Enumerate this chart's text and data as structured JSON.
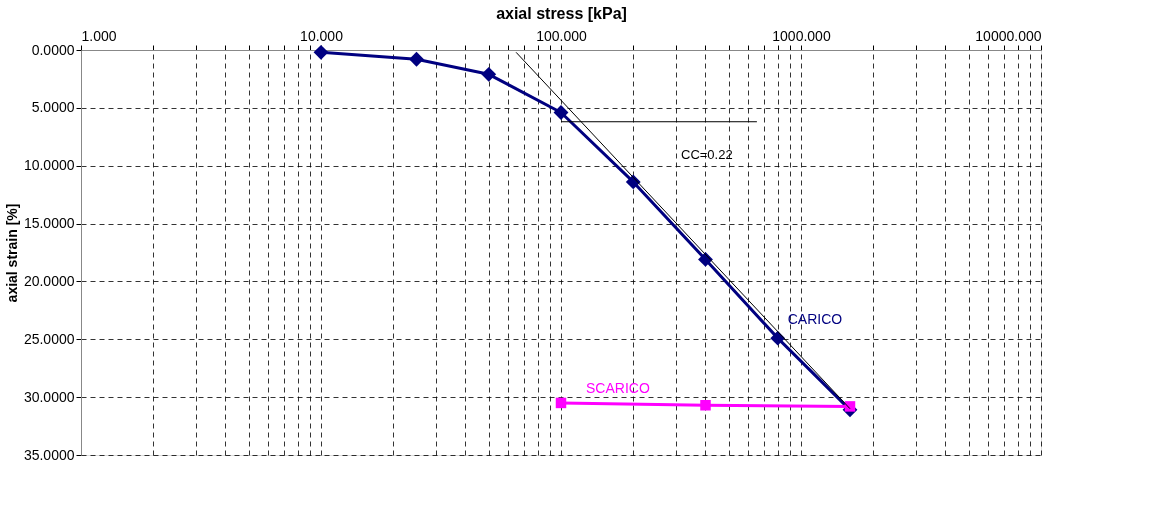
{
  "chart_data": {
    "type": "line",
    "xlabel": "axial stress [kPa]",
    "ylabel": "axial strain [%]",
    "log": "x",
    "grid": true,
    "line_style": "solid",
    "xlim": [
      1,
      10000
    ],
    "ylim": [
      35,
      0
    ],
    "xticks": [
      {
        "value": 1,
        "label": "1.000"
      },
      {
        "value": 2,
        "label": null
      },
      {
        "value": 3,
        "label": null
      },
      {
        "value": 4,
        "label": null
      },
      {
        "value": 5,
        "label": null
      },
      {
        "value": 6,
        "label": null
      },
      {
        "value": 7,
        "label": null
      },
      {
        "value": 8,
        "label": null
      },
      {
        "value": 9,
        "label": null
      },
      {
        "value": 10,
        "label": "10.000"
      },
      {
        "value": 20,
        "label": null
      },
      {
        "value": 30,
        "label": null
      },
      {
        "value": 40,
        "label": null
      },
      {
        "value": 50,
        "label": null
      },
      {
        "value": 60,
        "label": null
      },
      {
        "value": 70,
        "label": null
      },
      {
        "value": 80,
        "label": null
      },
      {
        "value": 90,
        "label": null
      },
      {
        "value": 100,
        "label": "100.000"
      },
      {
        "value": 200,
        "label": null
      },
      {
        "value": 300,
        "label": null
      },
      {
        "value": 400,
        "label": null
      },
      {
        "value": 500,
        "label": null
      },
      {
        "value": 600,
        "label": null
      },
      {
        "value": 700,
        "label": null
      },
      {
        "value": 800,
        "label": null
      },
      {
        "value": 900,
        "label": null
      },
      {
        "value": 1000,
        "label": "1000.000"
      },
      {
        "value": 2000,
        "label": null
      },
      {
        "value": 3000,
        "label": null
      },
      {
        "value": 4000,
        "label": null
      },
      {
        "value": 5000,
        "label": null
      },
      {
        "value": 6000,
        "label": null
      },
      {
        "value": 7000,
        "label": null
      },
      {
        "value": 8000,
        "label": null
      },
      {
        "value": 9000,
        "label": null
      },
      {
        "value": 10000,
        "label": "10000.000"
      }
    ],
    "yticks": [
      {
        "value": 0,
        "label": "0.0000"
      },
      {
        "value": 5,
        "label": "5.0000"
      },
      {
        "value": 10,
        "label": "10.0000"
      },
      {
        "value": 15,
        "label": "15.0000"
      },
      {
        "value": 20,
        "label": "20.0000"
      },
      {
        "value": 25,
        "label": "25.0000"
      },
      {
        "value": 30,
        "label": "30.0000"
      },
      {
        "value": 35,
        "label": "35.0000"
      }
    ],
    "series": [
      {
        "name": "CARICO",
        "color": "#000080",
        "marker": "diamond",
        "x": [
          10,
          25,
          50,
          100,
          200,
          400,
          800,
          1600
        ],
        "values": [
          0.2,
          0.8,
          2.1,
          5.4,
          11.4,
          18.1,
          24.9,
          31.1
        ]
      },
      {
        "name": "SCARICO",
        "color": "#ff00ff",
        "marker": "square",
        "x": [
          100,
          400,
          1600
        ],
        "values": [
          30.5,
          30.7,
          30.8
        ]
      },
      {
        "color": "#000000",
        "marker": "none",
        "x": [
          65,
          1600
        ],
        "values": [
          0.2,
          31.0
        ]
      },
      {
        "color": "#000000",
        "marker": "none",
        "x": [
          100,
          655
        ],
        "values": [
          6.2,
          6.2
        ]
      }
    ],
    "annotations": [
      "CC=0.22"
    ]
  }
}
